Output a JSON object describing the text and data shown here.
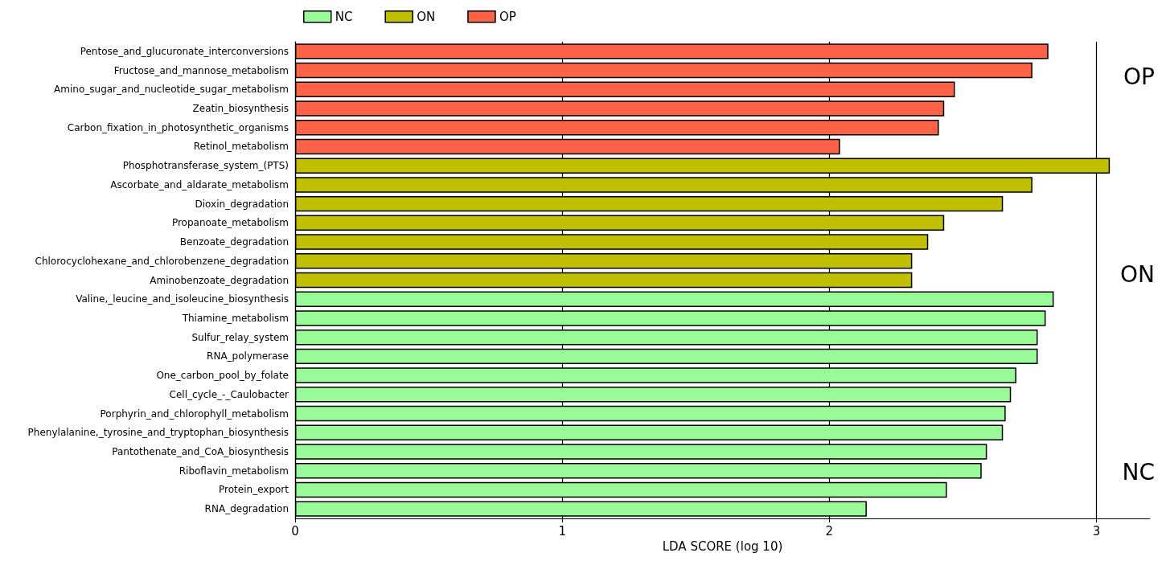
{
  "chart_data": {
    "type": "bar",
    "orientation": "horizontal",
    "xlabel": "LDA SCORE (log 10)",
    "categories": [
      "Pentose_and_glucuronate_interconversions",
      "Fructose_and_mannose_metabolism",
      "Amino_sugar_and_nucleotide_sugar_metabolism",
      "Zeatin_biosynthesis",
      "Carbon_fixation_in_photosynthetic_organisms",
      "Retinol_metabolism",
      "Phosphotransferase_system_(PTS)",
      "Ascorbate_and_aldarate_metabolism",
      "Dioxin_degradation",
      "Propanoate_metabolism",
      "Benzoate_degradation",
      "Chlorocyclohexane_and_chlorobenzene_degradation",
      "Aminobenzoate_degradation",
      "Valine,_leucine_and_isoleucine_biosynthesis",
      "Thiamine_metabolism",
      "Sulfur_relay_system",
      "RNA_polymerase",
      "One_carbon_pool_by_folate",
      "Cell_cycle_-_Caulobacter",
      "Porphyrin_and_chlorophyll_metabolism",
      "Phenylalanine,_tyrosine_and_tryptophan_biosynthesis",
      "Pantothenate_and_CoA_biosynthesis",
      "Riboflavin_metabolism",
      "Protein_export",
      "RNA_degradation"
    ],
    "series": [
      {
        "name": "NC",
        "color": "#98fb98",
        "values": [
          null,
          null,
          null,
          null,
          null,
          null,
          null,
          null,
          null,
          null,
          null,
          null,
          null,
          2.84,
          2.81,
          2.78,
          2.78,
          2.7,
          2.68,
          2.66,
          2.65,
          2.59,
          2.57,
          2.44,
          2.14
        ]
      },
      {
        "name": "ON",
        "color": "#c0c000",
        "values": [
          null,
          null,
          null,
          null,
          null,
          null,
          3.05,
          2.76,
          2.65,
          2.43,
          2.37,
          2.31,
          2.31,
          null,
          null,
          null,
          null,
          null,
          null,
          null,
          null,
          null,
          null,
          null,
          null
        ]
      },
      {
        "name": "OP",
        "color": "#ff6347",
        "values": [
          2.82,
          2.76,
          2.47,
          2.43,
          2.41,
          2.04,
          null,
          null,
          null,
          null,
          null,
          null,
          null,
          null,
          null,
          null,
          null,
          null,
          null,
          null,
          null,
          null,
          null,
          null,
          null
        ]
      }
    ],
    "xlim": [
      0,
      3.2
    ],
    "xticks": [
      0,
      1,
      2,
      3
    ],
    "grid": "x",
    "legend": "top",
    "annotations": [
      "OP",
      "ON",
      "NC"
    ]
  }
}
